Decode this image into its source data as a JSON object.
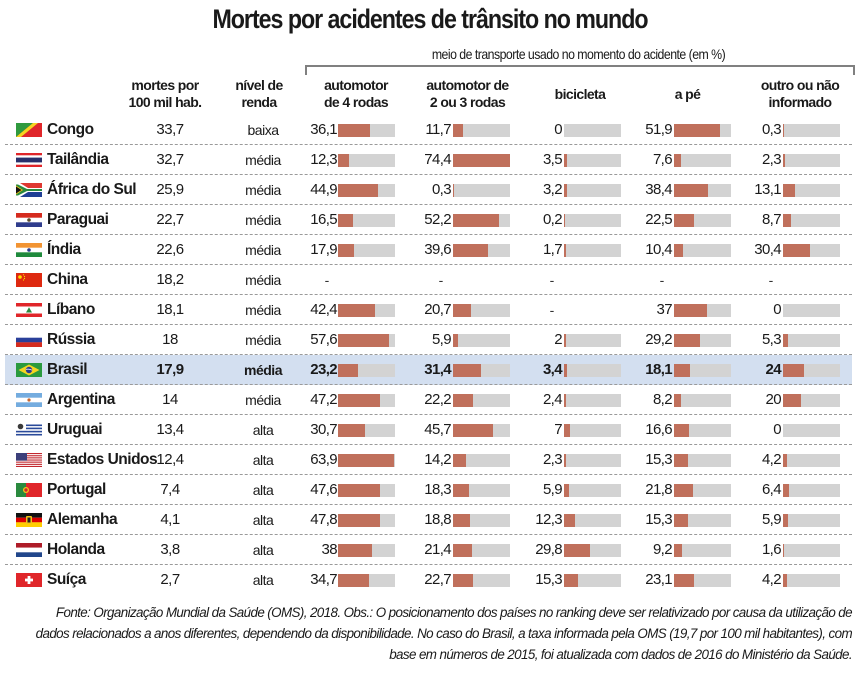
{
  "chart_data": {
    "type": "table",
    "title": "Mortes por acidentes de trânsito no mundo",
    "group_label": "meio de transporte usado no momento do acidente (em %)",
    "columns": {
      "deaths": "mortes por\n100 mil hab.",
      "income": "nível de\nrenda",
      "modes": [
        "automotor\nde 4 rodas",
        "automotor de\n2 ou 3 rodas",
        "bicicleta",
        "a pé",
        "outro ou não\ninformado"
      ]
    },
    "mode_unit": "%",
    "mode_scale_max": 100,
    "highlight": "Brasil",
    "rows": [
      {
        "country": "Congo",
        "flag": "congo-flag",
        "deaths": "33,7",
        "income": "baixa",
        "modes": [
          "36,1",
          "11,7",
          "0",
          "51,9",
          "0,3"
        ]
      },
      {
        "country": "Tailândia",
        "flag": "thailand-flag",
        "deaths": "32,7",
        "income": "média",
        "modes": [
          "12,3",
          "74,4",
          "3,5",
          "7,6",
          "2,3"
        ]
      },
      {
        "country": "África do Sul",
        "flag": "south-africa-flag",
        "deaths": "25,9",
        "income": "média",
        "modes": [
          "44,9",
          "0,3",
          "3,2",
          "38,4",
          "13,1"
        ]
      },
      {
        "country": "Paraguai",
        "flag": "paraguay-flag",
        "deaths": "22,7",
        "income": "média",
        "modes": [
          "16,5",
          "52,2",
          "0,2",
          "22,5",
          "8,7"
        ]
      },
      {
        "country": "Índia",
        "flag": "india-flag",
        "deaths": "22,6",
        "income": "média",
        "modes": [
          "17,9",
          "39,6",
          "1,7",
          "10,4",
          "30,4"
        ]
      },
      {
        "country": "China",
        "flag": "china-flag",
        "deaths": "18,2",
        "income": "média",
        "modes": [
          "-",
          "-",
          "-",
          "-",
          "-"
        ]
      },
      {
        "country": "Líbano",
        "flag": "lebanon-flag",
        "deaths": "18,1",
        "income": "média",
        "modes": [
          "42,4",
          "20,7",
          "-",
          "37",
          "0"
        ]
      },
      {
        "country": "Rússia",
        "flag": "russia-flag",
        "deaths": "18",
        "income": "média",
        "modes": [
          "57,6",
          "5,9",
          "2",
          "29,2",
          "5,3"
        ]
      },
      {
        "country": "Brasil",
        "flag": "brazil-flag",
        "deaths": "17,9",
        "income": "média",
        "modes": [
          "23,2",
          "31,4",
          "3,4",
          "18,1",
          "24"
        ]
      },
      {
        "country": "Argentina",
        "flag": "argentina-flag",
        "deaths": "14",
        "income": "média",
        "modes": [
          "47,2",
          "22,2",
          "2,4",
          "8,2",
          "20"
        ]
      },
      {
        "country": "Uruguai",
        "flag": "uruguay-flag",
        "deaths": "13,4",
        "income": "alta",
        "modes": [
          "30,7",
          "45,7",
          "7",
          "16,6",
          "0"
        ]
      },
      {
        "country": "Estados Unidos",
        "flag": "usa-flag",
        "deaths": "12,4",
        "income": "alta",
        "modes": [
          "63,9",
          "14,2",
          "2,3",
          "15,3",
          "4,2"
        ]
      },
      {
        "country": "Portugal",
        "flag": "portugal-flag",
        "deaths": "7,4",
        "income": "alta",
        "modes": [
          "47,6",
          "18,3",
          "5,9",
          "21,8",
          "6,4"
        ]
      },
      {
        "country": "Alemanha",
        "flag": "germany-flag",
        "deaths": "4,1",
        "income": "alta",
        "modes": [
          "47,8",
          "18,8",
          "12,3",
          "15,3",
          "5,9"
        ]
      },
      {
        "country": "Holanda",
        "flag": "netherlands-flag",
        "deaths": "3,8",
        "income": "alta",
        "modes": [
          "38",
          "21,4",
          "29,8",
          "9,2",
          "1,6"
        ]
      },
      {
        "country": "Suíça",
        "flag": "switzerland-flag",
        "deaths": "2,7",
        "income": "alta",
        "modes": [
          "34,7",
          "22,7",
          "15,3",
          "23,1",
          "4,2"
        ]
      }
    ],
    "footnote": "Fonte: Organização Mundial da Saúde (OMS), 2018. Obs.: O posicionamento dos países no ranking deve ser relativizado por causa da utilização de dados relacionados a anos diferentes, dependendo da disponibilidade. No caso do Brasil, a taxa informada pela OMS (19,7 por 100 mil habitantes), com base em números de 2015, foi atualizada com dados de 2016 do Ministério da Saúde."
  },
  "colors": {
    "bar_fill": "#c0705c",
    "bar_track": "#d3d3d3",
    "highlight_row": "#d3dff0"
  }
}
